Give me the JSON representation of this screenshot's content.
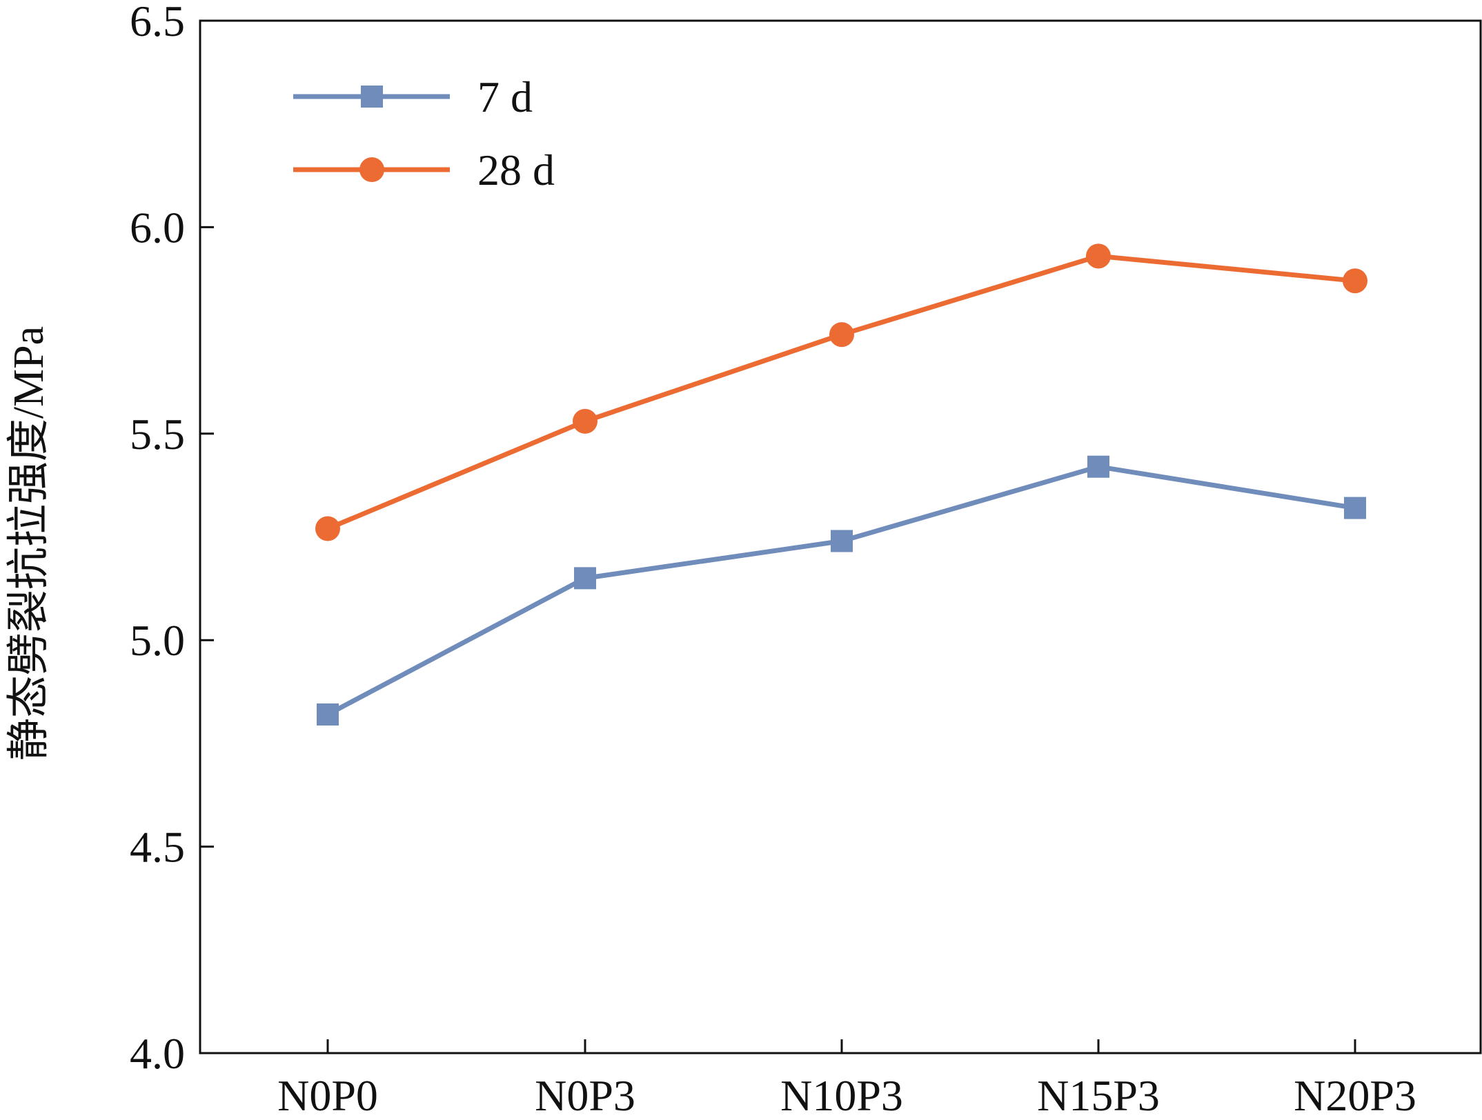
{
  "chart_data": {
    "type": "line",
    "title": "",
    "xlabel": "",
    "ylabel": "静态劈裂抗拉强度/MPa",
    "categories": [
      "N0P0",
      "N0P3",
      "N10P3",
      "N15P3",
      "N20P3"
    ],
    "ylim": [
      4.0,
      6.5
    ],
    "yticks": [
      4.0,
      4.5,
      5.0,
      5.5,
      6.0,
      6.5
    ],
    "ytick_labels": [
      "4.0",
      "4.5",
      "5.0",
      "5.5",
      "6.0",
      "6.5"
    ],
    "grid": false,
    "legend_position": "top-left",
    "series": [
      {
        "name": "7 d",
        "values": [
          4.82,
          5.15,
          5.24,
          5.42,
          5.32
        ],
        "color": "#6f8cba",
        "marker": "square"
      },
      {
        "name": "28 d",
        "values": [
          5.27,
          5.53,
          5.74,
          5.93,
          5.87
        ],
        "color": "#ec6b33",
        "marker": "circle"
      }
    ]
  }
}
